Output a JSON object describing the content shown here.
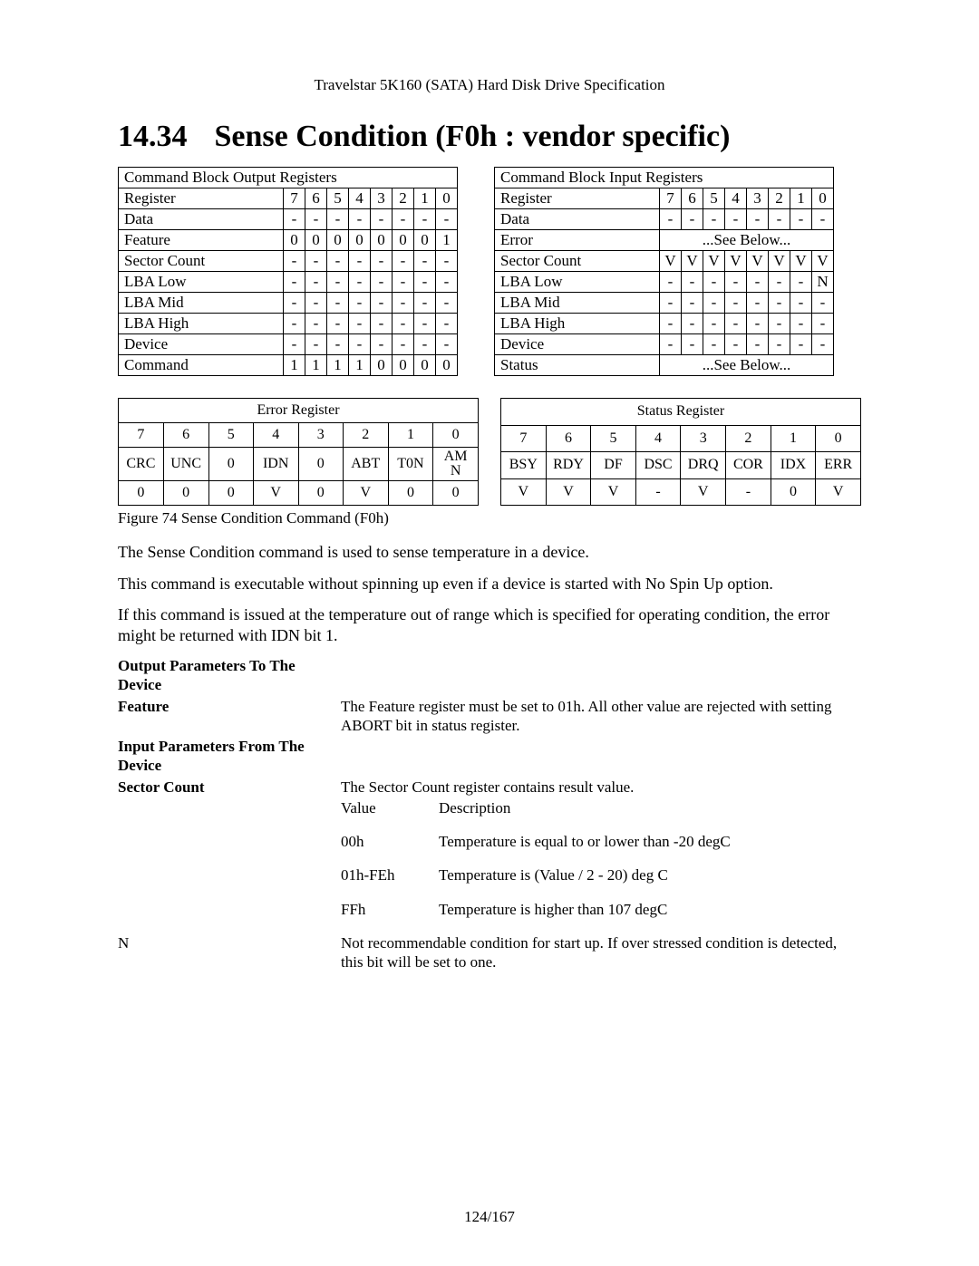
{
  "header": "Travelstar 5K160 (SATA) Hard Disk Drive Specification",
  "section_number": "14.34",
  "section_title": "Sense Condition (F0h : vendor specific)",
  "output_registers": {
    "title": "Command Block Output Registers",
    "label_col": "Register",
    "bits": [
      "7",
      "6",
      "5",
      "4",
      "3",
      "2",
      "1",
      "0"
    ],
    "rows": [
      {
        "label": "Data",
        "cells": [
          "-",
          "-",
          "-",
          "-",
          "-",
          "-",
          "-",
          "-"
        ]
      },
      {
        "label": "Feature",
        "cells": [
          "0",
          "0",
          "0",
          "0",
          "0",
          "0",
          "0",
          "1"
        ]
      },
      {
        "label": "Sector Count",
        "cells": [
          "-",
          "-",
          "-",
          "-",
          "-",
          "-",
          "-",
          "-"
        ]
      },
      {
        "label": "LBA Low",
        "cells": [
          "-",
          "-",
          "-",
          "-",
          "-",
          "-",
          "-",
          "-"
        ]
      },
      {
        "label": "LBA Mid",
        "cells": [
          "-",
          "-",
          "-",
          "-",
          "-",
          "-",
          "-",
          "-"
        ]
      },
      {
        "label": "LBA High",
        "cells": [
          "-",
          "-",
          "-",
          "-",
          "-",
          "-",
          "-",
          "-"
        ]
      },
      {
        "label": "Device",
        "cells": [
          "-",
          "-",
          "-",
          "-",
          "-",
          "-",
          "-",
          "-"
        ]
      },
      {
        "label": "Command",
        "cells": [
          "1",
          "1",
          "1",
          "1",
          "0",
          "0",
          "0",
          "0"
        ]
      }
    ]
  },
  "input_registers": {
    "title": "Command Block Input Registers",
    "label_col": "Register",
    "bits": [
      "7",
      "6",
      "5",
      "4",
      "3",
      "2",
      "1",
      "0"
    ],
    "rows": [
      {
        "label": "Data",
        "cells": [
          "-",
          "-",
          "-",
          "-",
          "-",
          "-",
          "-",
          "-"
        ]
      },
      {
        "label": "Error",
        "span": "...See Below..."
      },
      {
        "label": "Sector Count",
        "cells": [
          "V",
          "V",
          "V",
          "V",
          "V",
          "V",
          "V",
          "V"
        ]
      },
      {
        "label": "LBA Low",
        "cells": [
          "-",
          "-",
          "-",
          "-",
          "-",
          "-",
          "-",
          "N"
        ]
      },
      {
        "label": "LBA Mid",
        "cells": [
          "-",
          "-",
          "-",
          "-",
          "-",
          "-",
          "-",
          "-"
        ]
      },
      {
        "label": "LBA High",
        "cells": [
          "-",
          "-",
          "-",
          "-",
          "-",
          "-",
          "-",
          "-"
        ]
      },
      {
        "label": "Device",
        "cells": [
          "-",
          "-",
          "-",
          "-",
          "-",
          "-",
          "-",
          "-"
        ]
      },
      {
        "label": "Status",
        "span": "...See Below..."
      }
    ]
  },
  "error_register": {
    "title": "Error Register",
    "bits": [
      "7",
      "6",
      "5",
      "4",
      "3",
      "2",
      "1",
      "0"
    ],
    "names": [
      "CRC",
      "UNC",
      "0",
      "IDN",
      "0",
      "ABT",
      "T0N",
      "AMN"
    ],
    "values": [
      "0",
      "0",
      "0",
      "V",
      "0",
      "V",
      "0",
      "0"
    ]
  },
  "status_register": {
    "title": "Status Register",
    "bits": [
      "7",
      "6",
      "5",
      "4",
      "3",
      "2",
      "1",
      "0"
    ],
    "names": [
      "BSY",
      "RDY",
      "DF",
      "DSC",
      "DRQ",
      "COR",
      "IDX",
      "ERR"
    ],
    "values": [
      "V",
      "V",
      "V",
      "-",
      "V",
      "-",
      "0",
      "V"
    ]
  },
  "figure_caption": "Figure 74 Sense Condition Command (F0h)",
  "para1": "The Sense Condition command is used to sense temperature in a device.",
  "para2": "This command is executable without spinning up even if a device is started with No Spin Up option.",
  "para3": "If this command is issued at the temperature out of range which is specified for operating condition, the error might be returned with IDN bit 1.",
  "params": {
    "out_heading": "Output Parameters To The Device",
    "feature_label": "Feature",
    "feature_text": "The Feature register must be set to 01h. All other value are rejected with setting ABORT bit in status register.",
    "in_heading": "Input Parameters From The Device",
    "sector_label": "Sector Count",
    "sector_text": "The Sector Count register contains result value.",
    "value_h": "Value",
    "desc_h": "Description",
    "rows": [
      {
        "v": "00h",
        "d": "Temperature is equal to or lower than -20 degC"
      },
      {
        "v": "01h-FEh",
        "d": "Temperature is (Value / 2 - 20) deg C"
      },
      {
        "v": "FFh",
        "d": "Temperature is higher than 107 degC"
      }
    ],
    "n_label": "N",
    "n_text": "Not recommendable condition for start up. If over stressed condition is detected, this bit will be set to one."
  },
  "footer": "124/167",
  "colors": {
    "text": "#000000",
    "background": "#ffffff",
    "border": "#000000"
  },
  "fonts": {
    "body_serif": "Times New Roman",
    "title_serif": "Georgia"
  }
}
